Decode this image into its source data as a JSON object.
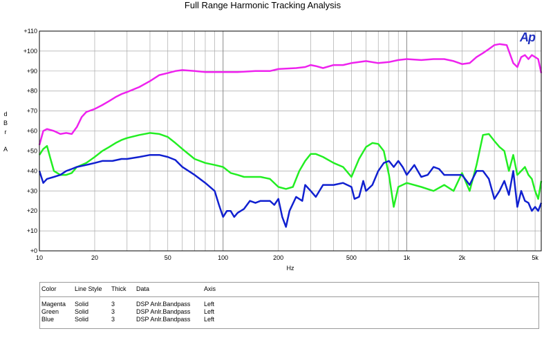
{
  "chart_data": {
    "type": "line",
    "title": "Full Range Harmonic Tracking Analysis",
    "xlabel": "Hz",
    "ylabel": "d B r  A",
    "xscale": "log",
    "xlim": [
      10,
      5400
    ],
    "ylim": [
      0,
      110
    ],
    "x_ticks": [
      {
        "value": 10,
        "label": "10"
      },
      {
        "value": 20,
        "label": "20"
      },
      {
        "value": 50,
        "label": "50"
      },
      {
        "value": 100,
        "label": "100"
      },
      {
        "value": 200,
        "label": "200"
      },
      {
        "value": 500,
        "label": "500"
      },
      {
        "value": 1000,
        "label": "1k"
      },
      {
        "value": 2000,
        "label": "2k"
      },
      {
        "value": 5000,
        "label": "5k"
      }
    ],
    "y_ticks": [
      {
        "value": 0,
        "label": "+0"
      },
      {
        "value": 10,
        "label": "+10"
      },
      {
        "value": 20,
        "label": "+20"
      },
      {
        "value": 30,
        "label": "+30"
      },
      {
        "value": 40,
        "label": "+40"
      },
      {
        "value": 50,
        "label": "+50"
      },
      {
        "value": 60,
        "label": "+60"
      },
      {
        "value": 70,
        "label": "+70"
      },
      {
        "value": 80,
        "label": "+80"
      },
      {
        "value": 90,
        "label": "+90"
      },
      {
        "value": 100,
        "label": "+100"
      },
      {
        "value": 110,
        "label": "+110"
      }
    ],
    "grid": true,
    "logo_text": "Ap",
    "series": [
      {
        "color_name": "Magenta",
        "color": "#ee22ee",
        "points": [
          [
            10,
            53
          ],
          [
            10.5,
            60
          ],
          [
            11,
            61
          ],
          [
            12,
            60
          ],
          [
            13,
            58.5
          ],
          [
            14,
            59
          ],
          [
            15,
            58.5
          ],
          [
            16,
            62
          ],
          [
            17,
            67
          ],
          [
            18,
            69.5
          ],
          [
            20,
            71
          ],
          [
            22,
            73
          ],
          [
            24,
            75
          ],
          [
            26,
            77
          ],
          [
            28,
            78.5
          ],
          [
            30,
            79.5
          ],
          [
            35,
            82
          ],
          [
            40,
            85
          ],
          [
            45,
            88
          ],
          [
            50,
            89
          ],
          [
            55,
            90
          ],
          [
            60,
            90.5
          ],
          [
            70,
            90
          ],
          [
            80,
            89.5
          ],
          [
            90,
            89.5
          ],
          [
            100,
            89.5
          ],
          [
            120,
            89.5
          ],
          [
            150,
            90
          ],
          [
            180,
            90
          ],
          [
            200,
            91
          ],
          [
            250,
            91.5
          ],
          [
            280,
            92
          ],
          [
            300,
            93
          ],
          [
            320,
            92.5
          ],
          [
            350,
            91.5
          ],
          [
            400,
            93
          ],
          [
            450,
            93
          ],
          [
            500,
            94
          ],
          [
            600,
            95
          ],
          [
            700,
            94
          ],
          [
            800,
            94.5
          ],
          [
            900,
            95.5
          ],
          [
            1000,
            96
          ],
          [
            1200,
            95.5
          ],
          [
            1400,
            96
          ],
          [
            1600,
            96
          ],
          [
            1800,
            95
          ],
          [
            2000,
            93.5
          ],
          [
            2200,
            94
          ],
          [
            2400,
            97
          ],
          [
            2600,
            99
          ],
          [
            2800,
            101
          ],
          [
            3000,
            103
          ],
          [
            3200,
            103.5
          ],
          [
            3500,
            103
          ],
          [
            3600,
            100
          ],
          [
            3800,
            94
          ],
          [
            4000,
            92
          ],
          [
            4200,
            97
          ],
          [
            4400,
            98
          ],
          [
            4600,
            96
          ],
          [
            4800,
            98
          ],
          [
            5000,
            97
          ],
          [
            5200,
            96
          ],
          [
            5400,
            89
          ]
        ]
      },
      {
        "color_name": "Green",
        "color": "#22ee22",
        "points": [
          [
            10,
            48
          ],
          [
            10.5,
            51
          ],
          [
            11,
            52.5
          ],
          [
            11.5,
            46
          ],
          [
            12,
            40
          ],
          [
            13,
            38
          ],
          [
            14,
            38
          ],
          [
            15,
            39
          ],
          [
            16,
            42
          ],
          [
            17,
            43
          ],
          [
            18,
            44
          ],
          [
            20,
            47
          ],
          [
            22,
            50
          ],
          [
            24,
            52
          ],
          [
            26,
            54
          ],
          [
            28,
            55.5
          ],
          [
            30,
            56.5
          ],
          [
            35,
            58
          ],
          [
            40,
            59
          ],
          [
            45,
            58.5
          ],
          [
            50,
            57
          ],
          [
            55,
            54
          ],
          [
            60,
            51
          ],
          [
            70,
            46
          ],
          [
            80,
            44
          ],
          [
            90,
            43
          ],
          [
            100,
            42
          ],
          [
            110,
            39
          ],
          [
            120,
            38
          ],
          [
            130,
            37
          ],
          [
            150,
            37
          ],
          [
            160,
            37
          ],
          [
            180,
            36
          ],
          [
            200,
            32
          ],
          [
            220,
            31
          ],
          [
            240,
            32
          ],
          [
            260,
            40
          ],
          [
            280,
            45
          ],
          [
            300,
            48.5
          ],
          [
            320,
            48.5
          ],
          [
            350,
            47
          ],
          [
            400,
            44
          ],
          [
            450,
            42
          ],
          [
            500,
            37
          ],
          [
            550,
            46
          ],
          [
            600,
            52
          ],
          [
            650,
            54
          ],
          [
            700,
            53.5
          ],
          [
            750,
            50
          ],
          [
            800,
            38
          ],
          [
            850,
            22
          ],
          [
            900,
            32
          ],
          [
            1000,
            34
          ],
          [
            1200,
            32
          ],
          [
            1400,
            30
          ],
          [
            1600,
            33
          ],
          [
            1800,
            30
          ],
          [
            2000,
            39
          ],
          [
            2200,
            30
          ],
          [
            2400,
            43
          ],
          [
            2600,
            58
          ],
          [
            2800,
            58.5
          ],
          [
            3000,
            55
          ],
          [
            3200,
            52
          ],
          [
            3400,
            50
          ],
          [
            3600,
            40
          ],
          [
            3800,
            48
          ],
          [
            4000,
            38
          ],
          [
            4200,
            40
          ],
          [
            4400,
            42
          ],
          [
            4600,
            38
          ],
          [
            4800,
            36
          ],
          [
            5000,
            30
          ],
          [
            5200,
            26
          ],
          [
            5400,
            35
          ]
        ]
      },
      {
        "color_name": "Blue",
        "color": "#1020d0",
        "points": [
          [
            10,
            40
          ],
          [
            10.5,
            34
          ],
          [
            11,
            36
          ],
          [
            12,
            37
          ],
          [
            13,
            38
          ],
          [
            14,
            40
          ],
          [
            15,
            41
          ],
          [
            16,
            42
          ],
          [
            18,
            43
          ],
          [
            20,
            44
          ],
          [
            22,
            45
          ],
          [
            25,
            45
          ],
          [
            28,
            46
          ],
          [
            30,
            46
          ],
          [
            35,
            47
          ],
          [
            40,
            48
          ],
          [
            45,
            48
          ],
          [
            50,
            47
          ],
          [
            55,
            45.5
          ],
          [
            60,
            42
          ],
          [
            70,
            38
          ],
          [
            80,
            34
          ],
          [
            90,
            30
          ],
          [
            95,
            23
          ],
          [
            100,
            17
          ],
          [
            105,
            20
          ],
          [
            110,
            20
          ],
          [
            115,
            17
          ],
          [
            120,
            19
          ],
          [
            130,
            21
          ],
          [
            140,
            25
          ],
          [
            150,
            24
          ],
          [
            160,
            25
          ],
          [
            180,
            25
          ],
          [
            190,
            23
          ],
          [
            200,
            26
          ],
          [
            210,
            17
          ],
          [
            220,
            12
          ],
          [
            230,
            20
          ],
          [
            250,
            27
          ],
          [
            270,
            25
          ],
          [
            280,
            33
          ],
          [
            300,
            30
          ],
          [
            320,
            27
          ],
          [
            350,
            33
          ],
          [
            400,
            33
          ],
          [
            450,
            34
          ],
          [
            500,
            32
          ],
          [
            520,
            26
          ],
          [
            550,
            27
          ],
          [
            580,
            35
          ],
          [
            600,
            30
          ],
          [
            650,
            33
          ],
          [
            700,
            40
          ],
          [
            750,
            44
          ],
          [
            800,
            45
          ],
          [
            850,
            42
          ],
          [
            900,
            45
          ],
          [
            950,
            42
          ],
          [
            1000,
            38
          ],
          [
            1100,
            43
          ],
          [
            1200,
            37
          ],
          [
            1300,
            38
          ],
          [
            1400,
            42
          ],
          [
            1500,
            41
          ],
          [
            1600,
            38
          ],
          [
            1800,
            38
          ],
          [
            2000,
            38
          ],
          [
            2200,
            33
          ],
          [
            2400,
            40
          ],
          [
            2600,
            40
          ],
          [
            2800,
            36
          ],
          [
            3000,
            26
          ],
          [
            3200,
            30
          ],
          [
            3400,
            35
          ],
          [
            3600,
            28
          ],
          [
            3800,
            40
          ],
          [
            4000,
            22
          ],
          [
            4200,
            30
          ],
          [
            4400,
            25
          ],
          [
            4600,
            24
          ],
          [
            4800,
            20
          ],
          [
            5000,
            22
          ],
          [
            5200,
            20
          ],
          [
            5400,
            24
          ]
        ]
      }
    ]
  },
  "legend": {
    "headers": [
      "Color",
      "Line Style",
      "Thick",
      "Data",
      "Axis"
    ],
    "rows": [
      {
        "color": "Magenta",
        "style": "Solid",
        "thick": "3",
        "data": "DSP Anlr.Bandpass",
        "axis": "Left"
      },
      {
        "color": "Green",
        "style": "Solid",
        "thick": "3",
        "data": "DSP Anlr.Bandpass",
        "axis": "Left"
      },
      {
        "color": "Blue",
        "style": "Solid",
        "thick": "3",
        "data": "DSP Anlr.Bandpass",
        "axis": "Left"
      }
    ]
  }
}
